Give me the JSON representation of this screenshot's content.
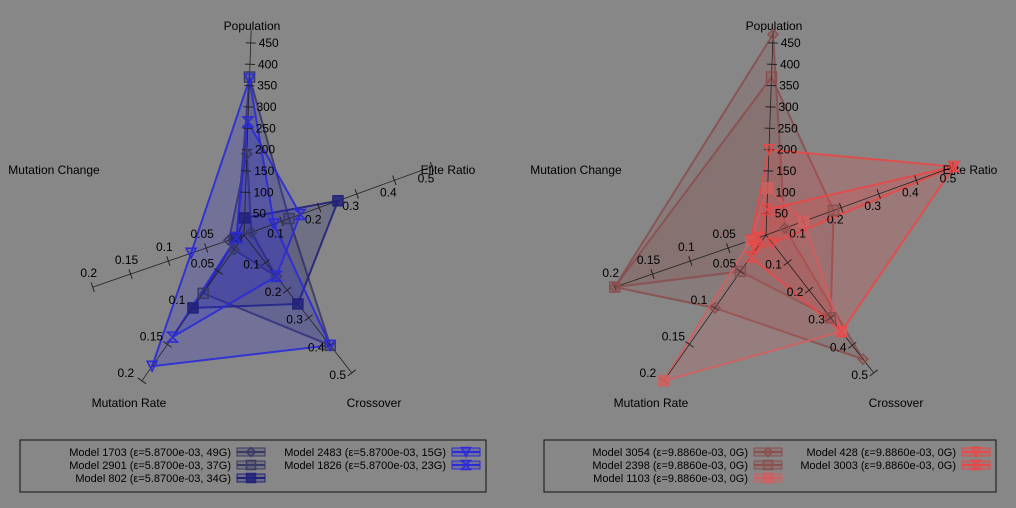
{
  "chart_data": [
    {
      "type": "radar",
      "axes": [
        "Population",
        "Elite Ratio",
        "Crossover",
        "Mutation Rate",
        "Mutation Change"
      ],
      "axis_ranges": [
        [
          0,
          480
        ],
        [
          0,
          0.5
        ],
        [
          0,
          0.5
        ],
        [
          0,
          0.2
        ],
        [
          0,
          0.2
        ]
      ],
      "axis_ticks": [
        [
          "50",
          "100",
          "150",
          "200",
          "250",
          "300",
          "350",
          "400",
          "450"
        ],
        [
          "0.1",
          "0.2",
          "0.3",
          "0.4",
          "0.5"
        ],
        [
          "0.1",
          "0.2",
          "0.3",
          "0.4",
          "0.5"
        ],
        [
          "0.05",
          "0.1",
          "0.15",
          "0.2"
        ],
        [
          "0.05",
          "0.1",
          "0.15",
          "0.2"
        ]
      ],
      "series": [
        {
          "name": "Model 1703 (ε=5.8700e-03, 49G)",
          "values": [
            190,
            0.02,
            0.15,
            0.02,
            0.02
          ],
          "color": "#3a3a66",
          "marker": "diamond"
        },
        {
          "name": "Model 2901 (ε=5.8700e-03, 37G)",
          "values": [
            370,
            0.12,
            0.4,
            0.08,
            0.01
          ],
          "color": "#3a3a66",
          "marker": "square-open"
        },
        {
          "name": "Model  802 (ε=5.8700e-03, 34G)",
          "values": [
            40,
            0.25,
            0.25,
            0.1,
            0.01
          ],
          "color": "#22227a",
          "marker": "square-filled"
        },
        {
          "name": "Model 2483 (ε=5.8700e-03, 15G)",
          "values": [
            365,
            0.08,
            0.4,
            0.18,
            0.07
          ],
          "color": "#2b2bd8",
          "marker": "triangle-down"
        },
        {
          "name": "Model 1826 (ε=5.8700e-03, 23G)",
          "values": [
            265,
            0.15,
            0.15,
            0.14,
            0.01
          ],
          "color": "#2b2bd8",
          "marker": "hourglass"
        }
      ]
    },
    {
      "type": "radar",
      "axes": [
        "Population",
        "Elite Ratio",
        "Crossover",
        "Mutation Rate",
        "Mutation Change"
      ],
      "axis_ranges": [
        [
          0,
          480
        ],
        [
          0,
          0.5
        ],
        [
          0,
          0.5
        ],
        [
          0,
          0.2
        ],
        [
          0,
          0.2
        ]
      ],
      "axis_ticks": [
        [
          "50",
          "100",
          "150",
          "200",
          "250",
          "300",
          "350",
          "400",
          "450"
        ],
        [
          "0.1",
          "0.2",
          "0.3",
          "0.4",
          "0.5"
        ],
        [
          "0.1",
          "0.2",
          "0.3",
          "0.4",
          "0.5"
        ],
        [
          "0.05",
          "0.1",
          "0.15",
          "0.2"
        ],
        [
          "0.05",
          "0.1",
          "0.15",
          "0.2"
        ]
      ],
      "series": [
        {
          "name": "Model 3054 (ε=9.8860e-03, 0G)",
          "values": [
            470,
            0.05,
            0.45,
            0.1,
            0.2
          ],
          "color": "#8a5050",
          "marker": "diamond"
        },
        {
          "name": "Model 2398 (ε=9.8860e-03, 0G)",
          "values": [
            370,
            0.18,
            0.3,
            0.05,
            0.2
          ],
          "color": "#8a5050",
          "marker": "square-open"
        },
        {
          "name": "Model 1103 (ε=9.8860e-03, 0G)",
          "values": [
            110,
            0.1,
            0.35,
            0.2,
            0.02
          ],
          "color": "#d06060",
          "marker": "square-filled"
        },
        {
          "name": "Model  428 (ε=9.8860e-03, 0G)",
          "values": [
            200,
            0.5,
            0.03,
            0.02,
            0.02
          ],
          "color": "#e84848",
          "marker": "triangle-down"
        },
        {
          "name": "Model 3003 (ε=9.8860e-03, 0G)",
          "values": [
            60,
            0.5,
            0.35,
            0.03,
            0.01
          ],
          "color": "#e84848",
          "marker": "hourglass"
        }
      ]
    }
  ]
}
